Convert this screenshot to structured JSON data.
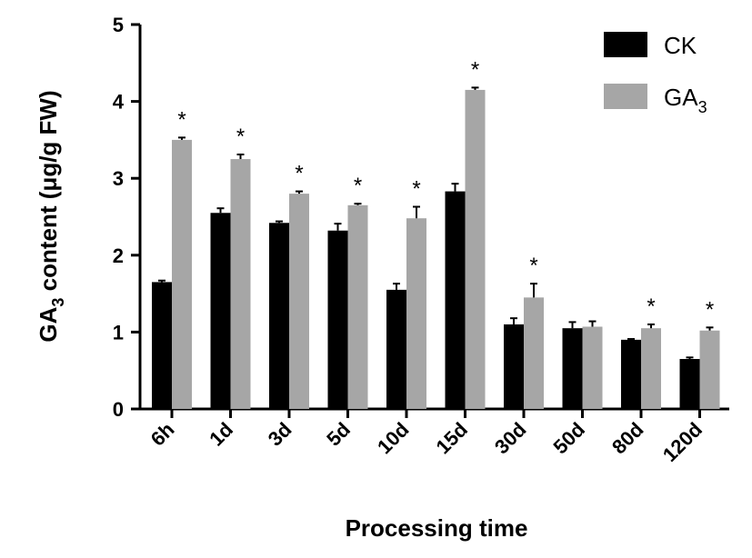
{
  "chart_data": {
    "type": "bar",
    "categories": [
      "6h",
      "1d",
      "3d",
      "5d",
      "10d",
      "15d",
      "30d",
      "50d",
      "80d",
      "120d"
    ],
    "series": [
      {
        "name": "CK",
        "color": "#000000",
        "values": [
          1.65,
          2.55,
          2.42,
          2.32,
          1.55,
          2.83,
          1.1,
          1.05,
          0.9,
          0.65
        ],
        "errors": [
          0.02,
          0.06,
          0.02,
          0.09,
          0.08,
          0.1,
          0.08,
          0.08,
          0.01,
          0.02
        ]
      },
      {
        "name": "GA",
        "name_subscript": "3",
        "color": "#a6a6a6",
        "values": [
          3.5,
          3.25,
          2.8,
          2.65,
          2.48,
          4.15,
          1.45,
          1.07,
          1.05,
          1.02
        ],
        "errors": [
          0.03,
          0.06,
          0.03,
          0.02,
          0.15,
          0.03,
          0.18,
          0.07,
          0.05,
          0.04
        ]
      }
    ],
    "significance": [
      "*",
      "*",
      "*",
      "*",
      "*",
      "*",
      "*",
      "",
      "*",
      "*"
    ],
    "ylim": [
      0,
      5
    ],
    "yticks": [
      "0",
      "1",
      "2",
      "3",
      "4",
      "5"
    ],
    "xlabel": "Processing time",
    "ylabel": {
      "prefix": "GA",
      "subscript": "3",
      "suffix": " content (μg/g FW)"
    },
    "legend_position": "top-right",
    "grid": false
  }
}
